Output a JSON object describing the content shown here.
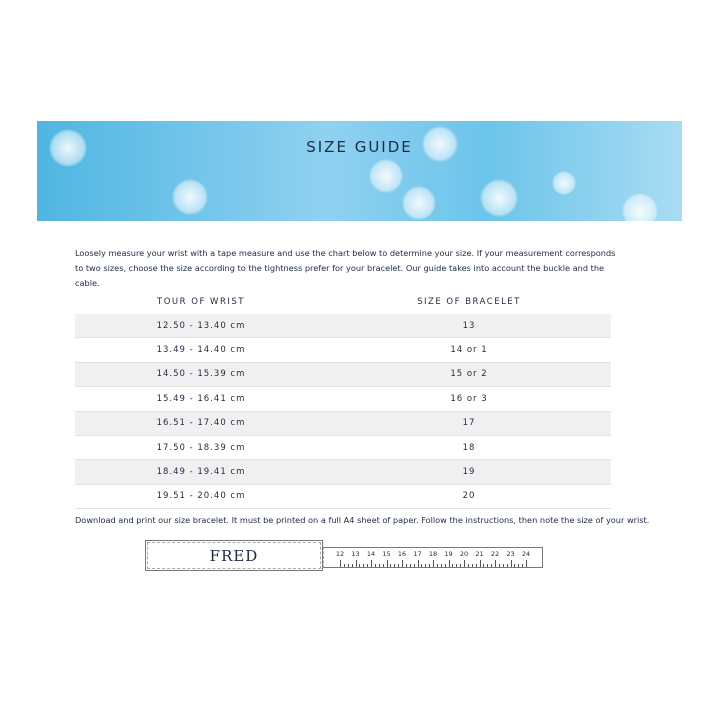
{
  "banner": {
    "title": "SIZE GUIDE"
  },
  "intro": "Loosely measure your wrist with a tape measure and use the chart below to determine your size. If your measurement corresponds to two sizes, choose the size according to the tightness prefer for your bracelet. Our guide takes into account the buckle and the cable.",
  "table": {
    "headers": [
      "TOUR OF WRIST",
      "SIZE OF BRACELET"
    ],
    "rows": [
      [
        "12.50 - 13.40 cm",
        "13"
      ],
      [
        "13.49 - 14.40 cm",
        "14 or 1"
      ],
      [
        "14.50 - 15.39 cm",
        "15 or 2"
      ],
      [
        "15.49 - 16.41 cm",
        "16 or 3"
      ],
      [
        "16.51 - 17.40 cm",
        "17"
      ],
      [
        "17.50 - 18.39 cm",
        "18"
      ],
      [
        "18.49 - 19.41 cm",
        "19"
      ],
      [
        "19.51 - 20.40 cm",
        "20"
      ]
    ]
  },
  "download_text": "Download and print our size bracelet. It must be printed on a full A4 sheet of paper. Follow the instructions, then note the size of your wrist.",
  "ruler": {
    "logo": "FRED",
    "numbers": [
      "12",
      "13",
      "14",
      "15",
      "16",
      "17",
      "18",
      "19",
      "20",
      "21",
      "22",
      "23",
      "24"
    ]
  }
}
